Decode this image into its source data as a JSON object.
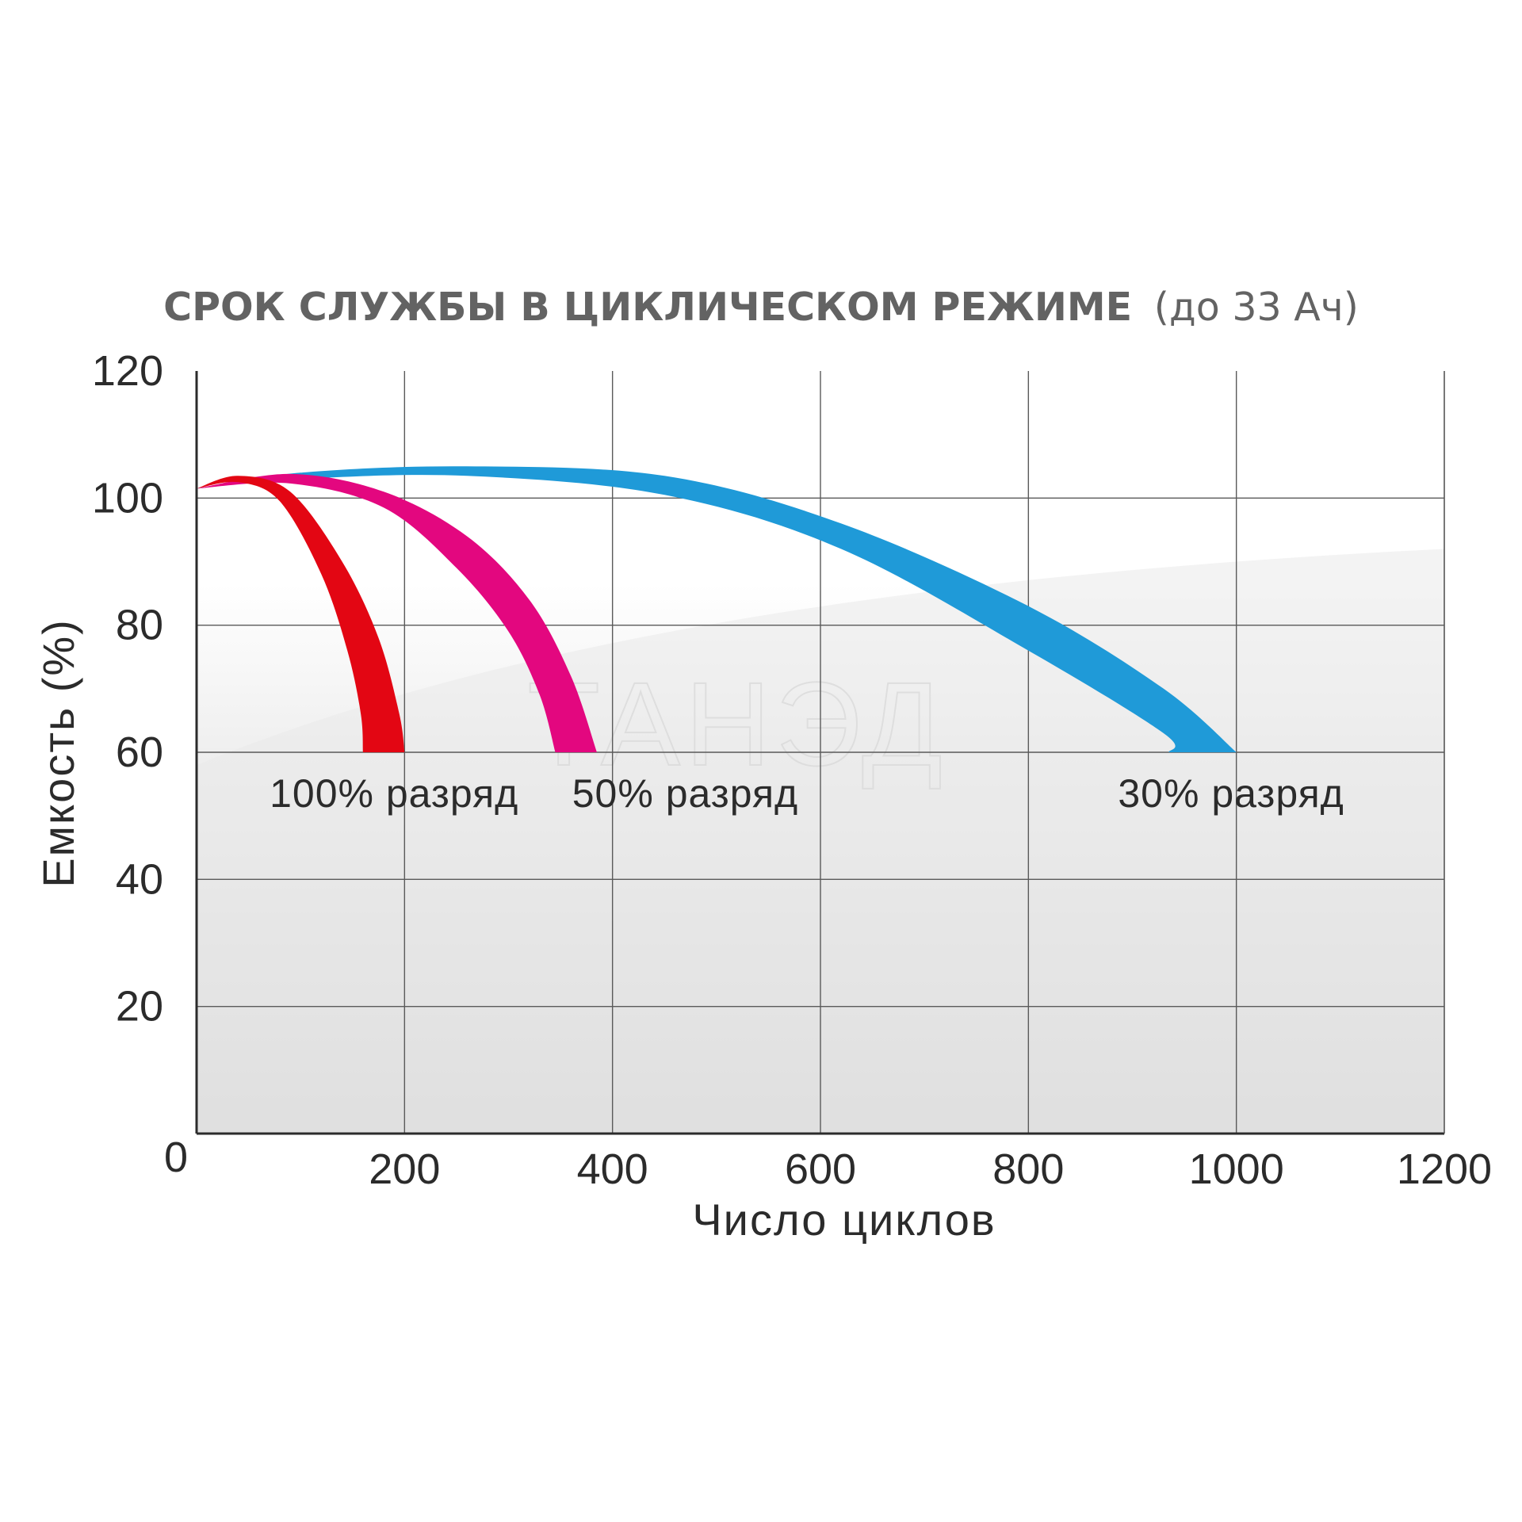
{
  "chart_data": {
    "type": "area",
    "title": "СРОК СЛУЖБЫ В ЦИКЛИЧЕСКОМ РЕЖИМЕ",
    "subtitle": "(до 33 Ач)",
    "xlabel": "Число циклов",
    "ylabel": "Емкость (%)",
    "xlim": [
      0,
      1200
    ],
    "ylim": [
      0,
      120
    ],
    "xticks": [
      "0",
      "200",
      "400",
      "600",
      "800",
      "1000",
      "1200"
    ],
    "yticks": [
      "20",
      "40",
      "60",
      "80",
      "100",
      "120"
    ],
    "grid": true,
    "watermark": "ТАНЭД",
    "series": [
      {
        "name": "30% разряд",
        "color": "#1f9ad8",
        "upper": [
          [
            0,
            101.5
          ],
          [
            100,
            104
          ],
          [
            260,
            105
          ],
          [
            450,
            103.5
          ],
          [
            620,
            96
          ],
          [
            800,
            83
          ],
          [
            930,
            70
          ],
          [
            1000,
            60
          ]
        ],
        "lower": [
          [
            0,
            101.5
          ],
          [
            100,
            103
          ],
          [
            260,
            103.5
          ],
          [
            450,
            100.5
          ],
          [
            620,
            92
          ],
          [
            800,
            76
          ],
          [
            930,
            63
          ],
          [
            935,
            60
          ]
        ]
      },
      {
        "name": "50% разряд",
        "color": "#e3077f",
        "upper": [
          [
            0,
            101.5
          ],
          [
            90,
            103.8
          ],
          [
            180,
            101
          ],
          [
            260,
            94
          ],
          [
            320,
            84
          ],
          [
            360,
            72
          ],
          [
            385,
            60
          ]
        ],
        "lower": [
          [
            0,
            101.5
          ],
          [
            90,
            102.3
          ],
          [
            180,
            98.5
          ],
          [
            250,
            89
          ],
          [
            300,
            79
          ],
          [
            330,
            69
          ],
          [
            345,
            60
          ]
        ]
      },
      {
        "name": "100% разряд",
        "color": "#e30613",
        "upper": [
          [
            0,
            101.5
          ],
          [
            40,
            103.5
          ],
          [
            90,
            101
          ],
          [
            140,
            90
          ],
          [
            175,
            78
          ],
          [
            195,
            66
          ],
          [
            200,
            60
          ]
        ],
        "lower": [
          [
            0,
            101.5
          ],
          [
            40,
            102.5
          ],
          [
            80,
            99.5
          ],
          [
            120,
            88
          ],
          [
            145,
            76
          ],
          [
            158,
            66
          ],
          [
            160,
            60
          ]
        ]
      }
    ]
  }
}
